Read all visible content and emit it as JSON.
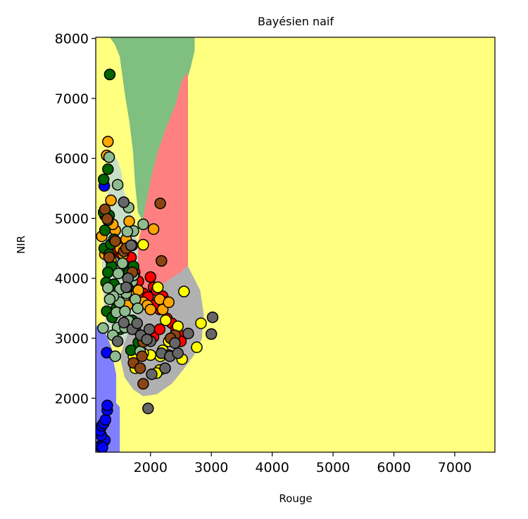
{
  "chart_data": {
    "type": "scatter",
    "title": "Bayésien naif",
    "xlabel": "Rouge",
    "ylabel": "NIR",
    "xlim": [
      1100,
      7660
    ],
    "ylim": [
      1100,
      8020
    ],
    "xticks": [
      2000,
      3000,
      4000,
      5000,
      6000,
      7000
    ],
    "yticks": [
      2000,
      3000,
      4000,
      5000,
      6000,
      7000,
      8000
    ],
    "grid": false,
    "legend": "none",
    "background_region_color": "#ffff80",
    "regions": [
      {
        "color": "#8080ff",
        "polygon": [
          [
            1100,
            1100
          ],
          [
            1490,
            1100
          ],
          [
            1490,
            1850
          ],
          [
            1430,
            1920
          ],
          [
            1430,
            2400
          ],
          [
            1380,
            2650
          ],
          [
            1350,
            2850
          ],
          [
            1250,
            3100
          ],
          [
            1150,
            3200
          ],
          [
            1100,
            3200
          ]
        ]
      },
      {
        "color": "#c8dfc8",
        "polygon": [
          [
            1270,
            3100
          ],
          [
            1400,
            3000
          ],
          [
            1500,
            2900
          ],
          [
            1620,
            2850
          ],
          [
            1660,
            3150
          ],
          [
            1760,
            3350
          ],
          [
            1790,
            3450
          ],
          [
            1800,
            3950
          ],
          [
            1780,
            4600
          ],
          [
            1720,
            4950
          ],
          [
            1660,
            5150
          ],
          [
            1560,
            5450
          ],
          [
            1520,
            5750
          ],
          [
            1460,
            5950
          ],
          [
            1400,
            6050
          ],
          [
            1350,
            5950
          ],
          [
            1300,
            5400
          ],
          [
            1230,
            5000
          ],
          [
            1200,
            4500
          ],
          [
            1230,
            3800
          ],
          [
            1250,
            3400
          ]
        ]
      },
      {
        "color": "#7fbf7f",
        "polygon": [
          [
            1340,
            8020
          ],
          [
            2720,
            8020
          ],
          [
            2720,
            7800
          ],
          [
            2650,
            7500
          ],
          [
            2560,
            7200
          ],
          [
            2420,
            6900
          ],
          [
            2260,
            6500
          ],
          [
            2120,
            6100
          ],
          [
            2010,
            5650
          ],
          [
            1920,
            5200
          ],
          [
            1880,
            4950
          ],
          [
            1800,
            5100
          ],
          [
            1750,
            5600
          ],
          [
            1720,
            6100
          ],
          [
            1660,
            6600
          ],
          [
            1580,
            7100
          ],
          [
            1500,
            7700
          ],
          [
            1420,
            7900
          ]
        ]
      },
      {
        "color": "#ff8080",
        "polygon": [
          [
            2520,
            7300
          ],
          [
            2610,
            7420
          ],
          [
            2610,
            4200
          ],
          [
            2500,
            4100
          ],
          [
            2350,
            4000
          ],
          [
            2200,
            3900
          ],
          [
            2000,
            3800
          ],
          [
            1880,
            3750
          ],
          [
            1810,
            3750
          ],
          [
            1790,
            3950
          ],
          [
            1800,
            4600
          ],
          [
            1880,
            4950
          ],
          [
            1920,
            5200
          ],
          [
            2010,
            5650
          ],
          [
            2120,
            6100
          ],
          [
            2260,
            6500
          ],
          [
            2420,
            6900
          ]
        ]
      },
      {
        "color": "#b0b0b0",
        "polygon": [
          [
            1790,
            3450
          ],
          [
            2200,
            3900
          ],
          [
            2350,
            4000
          ],
          [
            2500,
            4100
          ],
          [
            2610,
            4200
          ],
          [
            2810,
            3800
          ],
          [
            2870,
            3400
          ],
          [
            2840,
            3000
          ],
          [
            2730,
            2750
          ],
          [
            2550,
            2500
          ],
          [
            2350,
            2250
          ],
          [
            2100,
            2070
          ],
          [
            1880,
            2040
          ],
          [
            1720,
            2150
          ],
          [
            1580,
            2350
          ],
          [
            1500,
            2700
          ],
          [
            1660,
            3150
          ],
          [
            1760,
            3350
          ]
        ]
      }
    ],
    "series": [
      {
        "color": "#0000ff",
        "points": [
          [
            1170,
            1200
          ],
          [
            1220,
            1260
          ],
          [
            1250,
            1300
          ],
          [
            1190,
            1380
          ],
          [
            1170,
            1460
          ],
          [
            1200,
            1540
          ],
          [
            1230,
            1580
          ],
          [
            1260,
            1640
          ],
          [
            1290,
            1800
          ],
          [
            1290,
            1880
          ],
          [
            1280,
            2760
          ],
          [
            1240,
            5540
          ],
          [
            1210,
            1180
          ]
        ]
      },
      {
        "color": "#ff0000",
        "points": [
          [
            1250,
            5050
          ],
          [
            1350,
            4850
          ],
          [
            1400,
            4550
          ],
          [
            1460,
            4450
          ],
          [
            1520,
            4400
          ],
          [
            1580,
            4300
          ],
          [
            1650,
            4200
          ],
          [
            1680,
            4350
          ],
          [
            1740,
            4100
          ],
          [
            1800,
            3950
          ],
          [
            1880,
            3750
          ],
          [
            1950,
            3650
          ],
          [
            2000,
            4020
          ],
          [
            2050,
            3850
          ],
          [
            2100,
            3800
          ],
          [
            2150,
            3480
          ],
          [
            2270,
            3330
          ],
          [
            2350,
            3250
          ],
          [
            2420,
            3150
          ],
          [
            2480,
            3050
          ],
          [
            2500,
            2950
          ],
          [
            2050,
            3020
          ],
          [
            2150,
            3150
          ],
          [
            2200,
            3700
          ],
          [
            2270,
            3600
          ],
          [
            2050,
            3550
          ],
          [
            1960,
            3690
          ]
        ]
      },
      {
        "color": "#ffa500",
        "points": [
          [
            1300,
            6280
          ],
          [
            1280,
            6050
          ],
          [
            1350,
            5300
          ],
          [
            1420,
            4800
          ],
          [
            1380,
            4900
          ],
          [
            1450,
            4600
          ],
          [
            1500,
            4500
          ],
          [
            1550,
            4400
          ],
          [
            1600,
            4650
          ],
          [
            1650,
            4950
          ],
          [
            1700,
            4550
          ],
          [
            1720,
            3700
          ],
          [
            1800,
            3800
          ],
          [
            1880,
            3600
          ],
          [
            1950,
            3550
          ],
          [
            2000,
            3480
          ],
          [
            2050,
            4820
          ],
          [
            2150,
            3650
          ],
          [
            2200,
            3480
          ],
          [
            2300,
            3600
          ],
          [
            1580,
            3500
          ],
          [
            1620,
            3550
          ],
          [
            1200,
            4700
          ],
          [
            1250,
            4400
          ],
          [
            1350,
            4300
          ]
        ]
      },
      {
        "color": "#ffff00",
        "points": [
          [
            2550,
            3780
          ],
          [
            2830,
            3250
          ],
          [
            2760,
            2850
          ],
          [
            2520,
            2650
          ],
          [
            2450,
            3200
          ],
          [
            2300,
            2950
          ],
          [
            2200,
            2800
          ],
          [
            2160,
            2700
          ],
          [
            2150,
            2470
          ],
          [
            2100,
            2420
          ],
          [
            2000,
            2720
          ],
          [
            1880,
            2750
          ],
          [
            1750,
            2500
          ],
          [
            1720,
            2700
          ],
          [
            1880,
            4560
          ],
          [
            2120,
            3850
          ],
          [
            2250,
            3300
          ]
        ]
      },
      {
        "color": "#006400",
        "points": [
          [
            1330,
            7400
          ],
          [
            1300,
            5820
          ],
          [
            1320,
            5050
          ],
          [
            1230,
            5650
          ],
          [
            1230,
            5100
          ],
          [
            1250,
            4800
          ],
          [
            1240,
            4500
          ],
          [
            1320,
            4400
          ],
          [
            1350,
            4570
          ],
          [
            1400,
            4650
          ],
          [
            1360,
            4200
          ],
          [
            1300,
            4100
          ],
          [
            1270,
            3930
          ],
          [
            1280,
            3450
          ],
          [
            1370,
            3350
          ],
          [
            1400,
            3900
          ],
          [
            1440,
            3500
          ],
          [
            1500,
            3150
          ],
          [
            1580,
            4150
          ],
          [
            1650,
            4100
          ],
          [
            1700,
            4000
          ],
          [
            1720,
            4200
          ],
          [
            1700,
            3300
          ],
          [
            1750,
            3150
          ],
          [
            1680,
            2800
          ],
          [
            1800,
            2930
          ]
        ]
      },
      {
        "color": "#8fbc8f",
        "points": [
          [
            1320,
            6020
          ],
          [
            1460,
            5560
          ],
          [
            1640,
            5180
          ],
          [
            1720,
            4790
          ],
          [
            1540,
            4250
          ],
          [
            1470,
            4080
          ],
          [
            1490,
            3600
          ],
          [
            1440,
            3430
          ],
          [
            1460,
            3180
          ],
          [
            1380,
            3050
          ],
          [
            1220,
            3170
          ],
          [
            1420,
            2700
          ],
          [
            1580,
            3180
          ],
          [
            1640,
            3290
          ],
          [
            1700,
            3950
          ],
          [
            1720,
            4050
          ],
          [
            1750,
            3650
          ],
          [
            1790,
            3500
          ],
          [
            1600,
            3750
          ],
          [
            1500,
            3820
          ],
          [
            1390,
            3700
          ],
          [
            1330,
            3650
          ],
          [
            1300,
            3840
          ],
          [
            1580,
            3450
          ],
          [
            1620,
            3850
          ],
          [
            1880,
            4900
          ],
          [
            1940,
            3000
          ],
          [
            1830,
            2780
          ],
          [
            1300,
            4970
          ],
          [
            1620,
            4780
          ]
        ]
      },
      {
        "color": "#8b4513",
        "points": [
          [
            2160,
            5250
          ],
          [
            2180,
            4290
          ],
          [
            1560,
            4450
          ],
          [
            1320,
            4350
          ],
          [
            1250,
            5150
          ],
          [
            1290,
            4990
          ],
          [
            1600,
            4500
          ],
          [
            1700,
            4100
          ],
          [
            1880,
            2940
          ],
          [
            1860,
            2700
          ],
          [
            1880,
            2240
          ],
          [
            1720,
            2590
          ],
          [
            2400,
            3050
          ],
          [
            2300,
            2720
          ],
          [
            2330,
            3000
          ],
          [
            1830,
            2500
          ],
          [
            1420,
            4620
          ]
        ]
      },
      {
        "color": "#666666",
        "points": [
          [
            1560,
            5270
          ],
          [
            1680,
            4550
          ],
          [
            1630,
            4000
          ],
          [
            1600,
            3850
          ],
          [
            1560,
            3260
          ],
          [
            1460,
            2950
          ],
          [
            1700,
            3150
          ],
          [
            1780,
            3250
          ],
          [
            1840,
            3050
          ],
          [
            1960,
            1830
          ],
          [
            2020,
            2400
          ],
          [
            2180,
            2750
          ],
          [
            2240,
            2500
          ],
          [
            2320,
            2700
          ],
          [
            2400,
            2920
          ],
          [
            2450,
            2750
          ],
          [
            2620,
            3080
          ],
          [
            3000,
            3070
          ],
          [
            3020,
            3350
          ],
          [
            2000,
            2950
          ],
          [
            1980,
            3150
          ],
          [
            1940,
            2980
          ]
        ]
      }
    ]
  }
}
